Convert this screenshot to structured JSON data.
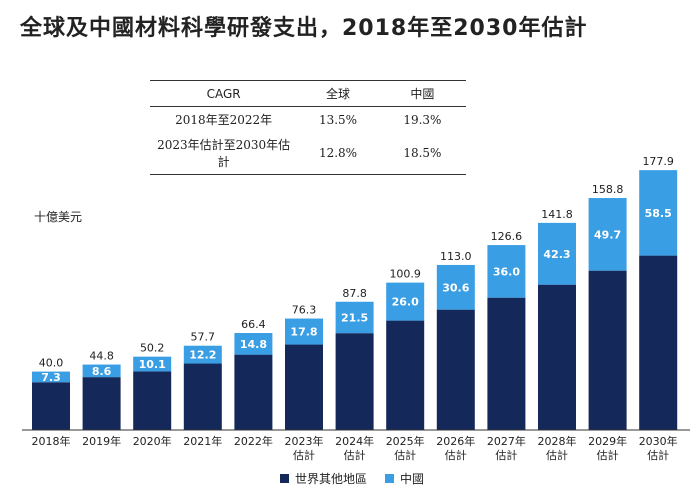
{
  "title": "全球及中國材料科學研發支出，2018年至2030年估計",
  "cagr_table": {
    "headers": [
      "CAGR",
      "全球",
      "中國"
    ],
    "rows": [
      [
        "2018年至2022年",
        "13.5%",
        "19.3%"
      ],
      [
        "2023年估計至2030年估計",
        "12.8%",
        "18.5%"
      ]
    ]
  },
  "chart_data": {
    "type": "bar",
    "stacked": true,
    "ylabel": "十億美元",
    "categories": [
      [
        "2018年"
      ],
      [
        "2019年"
      ],
      [
        "2020年"
      ],
      [
        "2021年"
      ],
      [
        "2022年"
      ],
      [
        "2023年",
        "估計"
      ],
      [
        "2024年",
        "估計"
      ],
      [
        "2025年",
        "估計"
      ],
      [
        "2026年",
        "估計"
      ],
      [
        "2027年",
        "估計"
      ],
      [
        "2028年",
        "估計"
      ],
      [
        "2029年",
        "估計"
      ],
      [
        "2030年",
        "估計"
      ]
    ],
    "totals": [
      40.0,
      44.8,
      50.2,
      57.7,
      66.4,
      76.3,
      87.8,
      100.9,
      113.0,
      126.6,
      141.8,
      158.8,
      177.9
    ],
    "series": [
      {
        "name": "世界其他地區",
        "color": "#14285a",
        "values": [
          32.7,
          36.2,
          40.1,
          45.5,
          51.6,
          58.5,
          66.3,
          74.9,
          82.4,
          90.6,
          99.5,
          109.1,
          119.4
        ]
      },
      {
        "name": "中國",
        "color": "#3a9ee4",
        "values": [
          7.3,
          8.6,
          10.1,
          12.2,
          14.8,
          17.8,
          21.5,
          26.0,
          30.6,
          36.0,
          42.3,
          49.7,
          58.5
        ]
      }
    ],
    "ylim": [
      0,
      180
    ],
    "grid": false,
    "legend": "bottom"
  }
}
